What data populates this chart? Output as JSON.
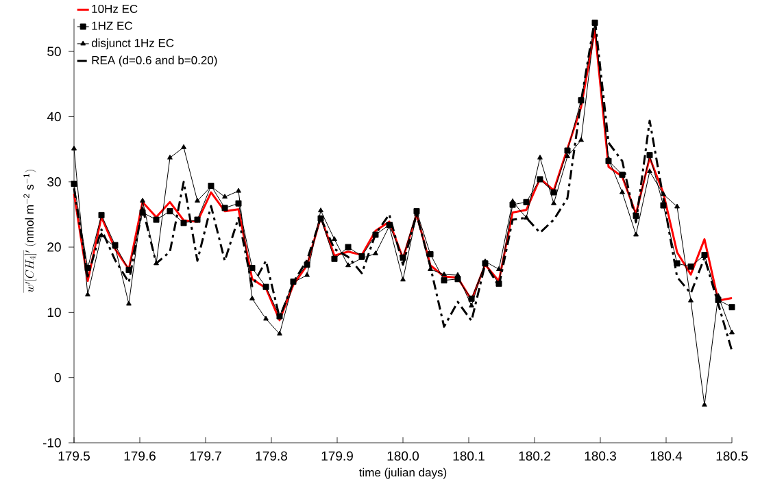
{
  "chart_data": {
    "type": "line",
    "xlabel": "time (julian days)",
    "ylabel": "\\overline{w'[CH_4]'}\\ (\\mathrm{nmol\\ m^{-2}\\ s^{-1}})",
    "x": [
      179.5,
      179.5208,
      179.5417,
      179.5625,
      179.5833,
      179.6042,
      179.625,
      179.6458,
      179.6667,
      179.6875,
      179.7083,
      179.7292,
      179.75,
      179.7708,
      179.7917,
      179.8125,
      179.8333,
      179.8542,
      179.875,
      179.8958,
      179.9167,
      179.9375,
      179.9583,
      179.9792,
      180.0,
      180.0208,
      180.0417,
      180.0625,
      180.0833,
      180.1042,
      180.125,
      180.1458,
      180.1667,
      180.1875,
      180.2083,
      180.2292,
      180.25,
      180.2708,
      180.2917,
      180.3125,
      180.3333,
      180.3542,
      180.375,
      180.3958,
      180.4167,
      180.4375,
      180.4583,
      180.4792,
      180.5
    ],
    "series": [
      {
        "name": "10Hz EC",
        "color": "#ff0000",
        "marker": "none",
        "line_style": "solid",
        "values": [
          28.2,
          14.8,
          24.6,
          19.7,
          16.6,
          26.9,
          24.6,
          26.9,
          24.1,
          23.9,
          28.4,
          25.5,
          25.8,
          15.1,
          13.7,
          8.8,
          14.2,
          17.2,
          24.6,
          18.7,
          19.3,
          18.8,
          22.5,
          23.9,
          18.3,
          25.0,
          17.2,
          15.5,
          15.3,
          11.9,
          17.3,
          14.8,
          25.3,
          25.7,
          30.5,
          28.7,
          35.1,
          41.5,
          53.3,
          32.3,
          30.8,
          25.1,
          33.7,
          28.3,
          19.2,
          15.8,
          21.2,
          11.8,
          12.2
        ]
      },
      {
        "name": "1HZ EC",
        "color": "#000000",
        "marker": "square",
        "line_style": "solid",
        "values": [
          29.7,
          16.8,
          24.9,
          20.3,
          16.5,
          25.3,
          24.2,
          25.5,
          23.7,
          24.2,
          29.4,
          26.0,
          26.7,
          16.8,
          13.9,
          9.4,
          14.7,
          17.3,
          24.4,
          18.2,
          20.0,
          18.6,
          21.9,
          23.4,
          18.4,
          25.5,
          18.9,
          14.9,
          15.1,
          12.1,
          17.5,
          14.4,
          26.5,
          26.9,
          30.4,
          28.4,
          34.8,
          42.5,
          54.4,
          33.2,
          31.1,
          24.8,
          34.1,
          26.4,
          17.5,
          17.0,
          18.8,
          11.9,
          10.8
        ]
      },
      {
        "name": "disjunct 1Hz EC",
        "color": "#000000",
        "marker": "triangle",
        "line_style": "solid",
        "values": [
          35.1,
          12.7,
          21.8,
          20.0,
          11.3,
          27.1,
          17.5,
          33.7,
          35.3,
          27.1,
          29.3,
          27.7,
          28.6,
          12.1,
          9.0,
          6.7,
          14.6,
          15.7,
          25.6,
          21.2,
          17.2,
          18.3,
          19.0,
          23.2,
          15.0,
          25.1,
          16.6,
          15.8,
          15.7,
          11.0,
          17.8,
          16.6,
          27.0,
          24.5,
          33.7,
          26.7,
          33.9,
          36.4,
          54.2,
          33.5,
          28.4,
          21.9,
          31.6,
          28.1,
          26.2,
          11.8,
          -4.2,
          12.5,
          6.9
        ]
      },
      {
        "name": "REA (d=0.6 and b=0.20)",
        "color": "#000000",
        "marker": "none",
        "line_style": "dashed",
        "values": [
          29.0,
          15.5,
          22.7,
          18.0,
          14.6,
          26.0,
          17.5,
          19.3,
          30.0,
          17.9,
          26.3,
          17.9,
          24.5,
          14.0,
          17.9,
          9.2,
          14.6,
          18.0,
          24.5,
          19.7,
          18.5,
          16.0,
          22.0,
          25.0,
          17.3,
          25.0,
          17.0,
          7.8,
          11.6,
          8.7,
          17.4,
          14.0,
          24.2,
          24.5,
          22.2,
          24.2,
          27.5,
          42.4,
          55.0,
          36.0,
          33.2,
          23.8,
          39.4,
          27.5,
          15.4,
          12.9,
          18.4,
          11.3,
          4.1
        ]
      }
    ],
    "xlim": [
      179.5,
      180.5
    ],
    "xticks": [
      179.5,
      179.6,
      179.7,
      179.8,
      179.9,
      {
        "value": 180,
        "label": "180.0"
      },
      180.1,
      180.2,
      180.3,
      180.4,
      180.5
    ],
    "ylim": [
      -10,
      55
    ],
    "yticks": [
      -10,
      0,
      10,
      20,
      30,
      40,
      50
    ],
    "legend": "top left"
  }
}
